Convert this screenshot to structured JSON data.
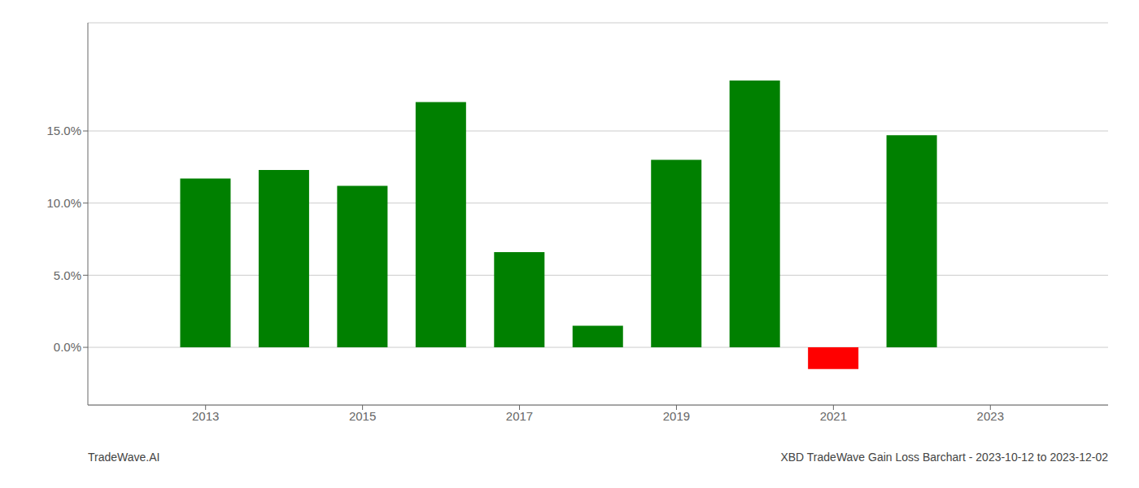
{
  "chart_data": {
    "type": "bar",
    "x": [
      2013,
      2014,
      2015,
      2016,
      2017,
      2018,
      2019,
      2020,
      2021,
      2022
    ],
    "values": [
      0.117,
      0.123,
      0.112,
      0.17,
      0.066,
      0.015,
      0.13,
      0.185,
      -0.015,
      0.147
    ],
    "colors": [
      "#008000",
      "#008000",
      "#008000",
      "#008000",
      "#008000",
      "#008000",
      "#008000",
      "#008000",
      "#ff0000",
      "#008000"
    ],
    "xlim": [
      2011.5,
      2024.5
    ],
    "xticks": [
      2013,
      2015,
      2017,
      2019,
      2021,
      2023
    ],
    "ylim": [
      -0.04,
      0.225
    ],
    "yticks": [
      {
        "value": 0.0,
        "label": "0.0%"
      },
      {
        "value": 0.05,
        "label": "5.0%"
      },
      {
        "value": 0.1,
        "label": "10.0%"
      },
      {
        "value": 0.15,
        "label": "15.0%"
      }
    ],
    "grid": true,
    "annotations": [
      "TradeWave.AI",
      "XBD TradeWave Gain Loss Barchart - 2023-10-12 to 2023-12-02"
    ]
  }
}
